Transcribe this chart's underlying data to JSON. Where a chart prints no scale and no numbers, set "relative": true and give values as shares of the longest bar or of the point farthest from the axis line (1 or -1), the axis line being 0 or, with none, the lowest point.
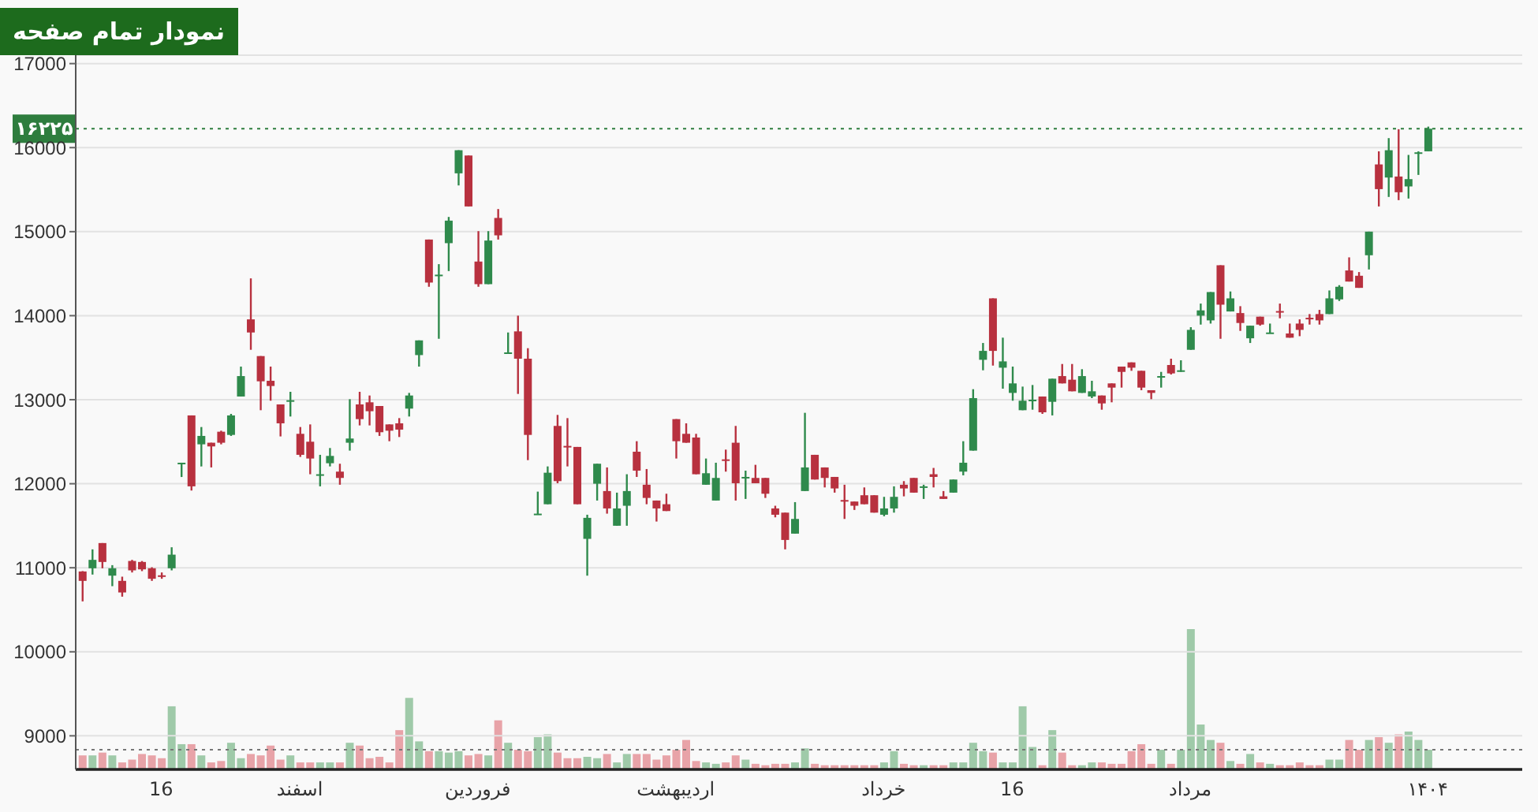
{
  "chart_data": [
    {
      "type": "candlestick",
      "annotations": [
        "نمودار تمام صفحه"
      ],
      "categories": [
        null,
        null,
        null,
        null,
        null,
        null,
        null,
        null,
        "16",
        null,
        null,
        null,
        null,
        null,
        null,
        null,
        null,
        null,
        null,
        null,
        null,
        null,
        "اسفند",
        null,
        null,
        null,
        null,
        null,
        null,
        null,
        null,
        null,
        null,
        null,
        null,
        null,
        null,
        null,
        null,
        null,
        "فروردین",
        null,
        null,
        null,
        null,
        null,
        null,
        null,
        null,
        null,
        null,
        null,
        null,
        null,
        null,
        null,
        null,
        null,
        null,
        null,
        "اردیبهشت",
        null,
        null,
        null,
        null,
        null,
        null,
        null,
        null,
        null,
        null,
        null,
        null,
        null,
        null,
        null,
        null,
        null,
        null,
        null,
        null,
        "خرداد",
        null,
        null,
        null,
        null,
        null,
        null,
        null,
        null,
        null,
        null,
        null,
        null,
        "16",
        null,
        null,
        null,
        null,
        null,
        null,
        null,
        null,
        null,
        null,
        null,
        null,
        null,
        null,
        null,
        null,
        null,
        "مرداد",
        null,
        null,
        null,
        null,
        null,
        null,
        null,
        null,
        null,
        null,
        null,
        null,
        null,
        null,
        null,
        null,
        null,
        null,
        null,
        null,
        null,
        null,
        null,
        "۱۴۰۴"
      ],
      "ohlc": [
        [
          10956,
          10960,
          10600,
          10844
        ],
        [
          10994,
          11219,
          10919,
          11094
        ],
        [
          11294,
          11294,
          10994,
          11069
        ],
        [
          10906,
          11031,
          10781,
          10994
        ],
        [
          10844,
          10894,
          10656,
          10706
        ],
        [
          11081,
          11094,
          10944,
          10969
        ],
        [
          11069,
          11080,
          10960,
          10981
        ],
        [
          10994,
          11006,
          10844,
          10869
        ],
        [
          10910,
          10944,
          10869,
          10906
        ],
        [
          10994,
          11244,
          10969,
          11156
        ],
        [
          12240,
          12250,
          12080,
          12250
        ],
        [
          12813,
          12813,
          11919,
          11969
        ],
        [
          12469,
          12675,
          12206,
          12569
        ],
        [
          12488,
          12488,
          12194,
          12444
        ],
        [
          12619,
          12631,
          12469,
          12488
        ],
        [
          12581,
          12831,
          12569,
          12813
        ],
        [
          13038,
          13394,
          13038,
          13281
        ],
        [
          13956,
          14444,
          13594,
          13800
        ],
        [
          13519,
          13519,
          12875,
          13219
        ],
        [
          13225,
          13394,
          12988,
          13163
        ],
        [
          12944,
          12944,
          12563,
          12719
        ],
        [
          12985,
          13094,
          12800,
          12994
        ],
        [
          12594,
          12675,
          12319,
          12344
        ],
        [
          12500,
          12706,
          12113,
          12300
        ],
        [
          12105,
          12344,
          11969,
          12113
        ],
        [
          12244,
          12425,
          12206,
          12331
        ],
        [
          12144,
          12238,
          11988,
          12069
        ],
        [
          12488,
          13006,
          12394,
          12538
        ],
        [
          12944,
          13094,
          12694,
          12769
        ],
        [
          12969,
          13050,
          12694,
          12863
        ],
        [
          12925,
          12925,
          12569,
          12613
        ],
        [
          12706,
          12706,
          12506,
          12631
        ],
        [
          12719,
          12781,
          12556,
          12644
        ],
        [
          12894,
          13081,
          12800,
          13050
        ],
        [
          13531,
          13706,
          13394,
          13706
        ],
        [
          14906,
          14906,
          14344,
          14394
        ],
        [
          14475,
          14613,
          13725,
          14488
        ],
        [
          14863,
          15175,
          14531,
          15131
        ],
        [
          15694,
          15969,
          15550,
          15969
        ],
        [
          15906,
          15906,
          15300,
          15300
        ],
        [
          14644,
          15006,
          14344,
          14375
        ],
        [
          14375,
          15006,
          14375,
          14894
        ],
        [
          15163,
          15269,
          14906,
          14956
        ],
        [
          13560,
          13800,
          13560,
          13563
        ],
        [
          13813,
          14000,
          13069,
          13488
        ],
        [
          13488,
          13613,
          12281,
          12581
        ],
        [
          11640,
          11906,
          11640,
          11644
        ],
        [
          11756,
          12206,
          11756,
          12131
        ],
        [
          12688,
          12819,
          12006,
          12031
        ],
        [
          12450,
          12781,
          12206,
          12444
        ],
        [
          12438,
          12438,
          11756,
          11756
        ],
        [
          11344,
          11631,
          10906,
          11594
        ],
        [
          12000,
          12238,
          11800,
          12238
        ],
        [
          11913,
          12194,
          11644,
          11706
        ],
        [
          11500,
          11894,
          11500,
          11706
        ],
        [
          11738,
          12113,
          11500,
          11913
        ],
        [
          12381,
          12506,
          12081,
          12156
        ],
        [
          11988,
          12175,
          11756,
          11831
        ],
        [
          11800,
          11800,
          11550,
          11706
        ],
        [
          11756,
          11881,
          11675,
          11675
        ],
        [
          12769,
          12769,
          12300,
          12506
        ],
        [
          12594,
          12719,
          12488,
          12488
        ],
        [
          12550,
          12594,
          12113,
          12113
        ],
        [
          11988,
          12300,
          11988,
          12125
        ],
        [
          11800,
          12250,
          11800,
          12069
        ],
        [
          12290,
          12406,
          12144,
          12281
        ],
        [
          12488,
          12688,
          11800,
          12006
        ],
        [
          12075,
          12156,
          11819,
          12081
        ],
        [
          12069,
          12225,
          12006,
          12006
        ],
        [
          12069,
          12069,
          11831,
          11881
        ],
        [
          11706,
          11738,
          11600,
          11631
        ],
        [
          11656,
          11656,
          11219,
          11331
        ],
        [
          11406,
          11781,
          11406,
          11581
        ],
        [
          11913,
          12844,
          11913,
          12194
        ],
        [
          12344,
          12344,
          12050,
          12050
        ],
        [
          12194,
          12194,
          11956,
          12069
        ],
        [
          12081,
          12081,
          11894,
          11944
        ],
        [
          11806,
          11988,
          11581,
          11800
        ],
        [
          11788,
          11788,
          11688,
          11738
        ],
        [
          11863,
          11956,
          11756,
          11756
        ],
        [
          11863,
          11863,
          11656,
          11656
        ],
        [
          11631,
          11844,
          11613,
          11706
        ],
        [
          11706,
          11969,
          11656,
          11844
        ],
        [
          11988,
          12031,
          11850,
          11944
        ],
        [
          12069,
          12069,
          11894,
          11894
        ],
        [
          11963,
          11988,
          11819,
          11969
        ],
        [
          12113,
          12188,
          11956,
          12081
        ],
        [
          11850,
          11913,
          11819,
          11819
        ],
        [
          11894,
          12050,
          11894,
          12050
        ],
        [
          12144,
          12506,
          12100,
          12250
        ],
        [
          12394,
          13125,
          12394,
          13019
        ],
        [
          13475,
          13675,
          13350,
          13581
        ],
        [
          14206,
          14206,
          13406,
          13581
        ],
        [
          13381,
          13738,
          13131,
          13456
        ],
        [
          13081,
          13394,
          12988,
          13194
        ],
        [
          12875,
          13156,
          12875,
          12988
        ],
        [
          12995,
          13175,
          12881,
          13000
        ],
        [
          13038,
          13038,
          12831,
          12850
        ],
        [
          12975,
          13250,
          12813,
          13250
        ],
        [
          13281,
          13425,
          13194,
          13194
        ],
        [
          13238,
          13425,
          13100,
          13100
        ],
        [
          13081,
          13363,
          13081,
          13281
        ],
        [
          13038,
          13225,
          13019,
          13100
        ],
        [
          13050,
          13050,
          12881,
          12956
        ],
        [
          13194,
          13194,
          12969,
          13144
        ],
        [
          13394,
          13394,
          13144,
          13331
        ],
        [
          13444,
          13444,
          13344,
          13381
        ],
        [
          13344,
          13344,
          13113,
          13144
        ],
        [
          13113,
          13113,
          13006,
          13081
        ],
        [
          13275,
          13331,
          13144,
          13281
        ],
        [
          13413,
          13488,
          13300,
          13313
        ],
        [
          13345,
          13469,
          13331,
          13350
        ],
        [
          13594,
          13863,
          13594,
          13831
        ],
        [
          14000,
          14144,
          13894,
          14063
        ],
        [
          13944,
          14281,
          13906,
          14281
        ],
        [
          14600,
          14600,
          13725,
          14131
        ],
        [
          14050,
          14288,
          14050,
          14206
        ],
        [
          14031,
          14113,
          13819,
          13913
        ],
        [
          13731,
          13881,
          13675,
          13881
        ],
        [
          13988,
          13988,
          13881,
          13894
        ],
        [
          13795,
          13906,
          13788,
          13800
        ],
        [
          14055,
          14144,
          13969,
          14050
        ],
        [
          13788,
          13906,
          13738,
          13738
        ],
        [
          13906,
          13956,
          13756,
          13831
        ],
        [
          13975,
          14019,
          13894,
          13969
        ],
        [
          14019,
          14069,
          13894,
          13944
        ],
        [
          14019,
          14300,
          14019,
          14206
        ],
        [
          14194,
          14363,
          14175,
          14344
        ],
        [
          14538,
          14694,
          14406,
          14406
        ],
        [
          14475,
          14519,
          14331,
          14331
        ],
        [
          14719,
          15000,
          14550,
          15000
        ],
        [
          15800,
          15956,
          15300,
          15506
        ],
        [
          15644,
          16113,
          15413,
          15969
        ],
        [
          15656,
          16219,
          15375,
          15469
        ],
        [
          15538,
          15913,
          15394,
          15625
        ],
        [
          15940,
          15956,
          15675,
          15944
        ],
        [
          15956,
          16250,
          15956,
          16225
        ]
      ],
      "colors": [
        "#b8313f",
        "#2f8a4c",
        "#b8313f",
        "#2f8a4c",
        "#b8313f",
        "#b8313f",
        "#b8313f",
        "#b8313f",
        "#b8313f",
        "#2f8a4c",
        "#2f8a4c",
        "#b8313f",
        "#2f8a4c",
        "#b8313f",
        "#b8313f",
        "#2f8a4c",
        "#2f8a4c",
        "#b8313f",
        "#b8313f",
        "#b8313f",
        "#b8313f",
        "#2f8a4c",
        "#b8313f",
        "#b8313f",
        "#2f8a4c",
        "#2f8a4c",
        "#b8313f",
        "#2f8a4c",
        "#b8313f",
        "#b8313f",
        "#b8313f",
        "#b8313f",
        "#b8313f",
        "#2f8a4c",
        "#2f8a4c",
        "#b8313f",
        "#2f8a4c",
        "#2f8a4c",
        "#2f8a4c",
        "#b8313f",
        "#b8313f",
        "#2f8a4c",
        "#b8313f",
        "#2f8a4c",
        "#b8313f",
        "#b8313f",
        "#2f8a4c",
        "#2f8a4c",
        "#b8313f",
        "#b8313f",
        "#b8313f",
        "#2f8a4c",
        "#2f8a4c",
        "#b8313f",
        "#2f8a4c",
        "#2f8a4c",
        "#b8313f",
        "#b8313f",
        "#b8313f",
        "#b8313f",
        "#b8313f",
        "#b8313f",
        "#b8313f",
        "#2f8a4c",
        "#2f8a4c",
        "#b8313f",
        "#b8313f",
        "#2f8a4c",
        "#b8313f",
        "#b8313f",
        "#b8313f",
        "#b8313f",
        "#2f8a4c",
        "#2f8a4c",
        "#b8313f",
        "#b8313f",
        "#b8313f",
        "#b8313f",
        "#b8313f",
        "#b8313f",
        "#b8313f",
        "#2f8a4c",
        "#2f8a4c",
        "#b8313f",
        "#b8313f",
        "#2f8a4c",
        "#b8313f",
        "#b8313f",
        "#2f8a4c",
        "#2f8a4c",
        "#2f8a4c",
        "#2f8a4c",
        "#b8313f",
        "#2f8a4c",
        "#2f8a4c",
        "#2f8a4c",
        "#2f8a4c",
        "#b8313f",
        "#2f8a4c",
        "#b8313f",
        "#b8313f",
        "#2f8a4c",
        "#2f8a4c",
        "#b8313f",
        "#b8313f",
        "#b8313f",
        "#b8313f",
        "#b8313f",
        "#b8313f",
        "#2f8a4c",
        "#b8313f",
        "#2f8a4c",
        "#2f8a4c",
        "#2f8a4c",
        "#2f8a4c",
        "#b8313f",
        "#2f8a4c",
        "#b8313f",
        "#2f8a4c",
        "#b8313f",
        "#2f8a4c",
        "#b8313f",
        "#b8313f",
        "#b8313f",
        "#b8313f",
        "#b8313f",
        "#2f8a4c",
        "#2f8a4c",
        "#b8313f",
        "#b8313f",
        "#2f8a4c",
        "#b8313f",
        "#2f8a4c",
        "#b8313f",
        "#2f8a4c",
        "#2f8a4c",
        "#2f8a4c"
      ],
      "ylim": [
        8600,
        17100
      ],
      "yticks": [
        9000,
        10000,
        11000,
        12000,
        13000,
        14000,
        15000,
        16000,
        17000
      ],
      "grid": "y",
      "ref_lines": [
        {
          "axis": "y",
          "value": 16225,
          "label": "۱۶۲۲۵",
          "color": "#2e7d3e",
          "line_style": "dotted"
        }
      ]
    },
    {
      "type": "bar",
      "relative": true,
      "categories": [
        null,
        null,
        null,
        null,
        null,
        null,
        null,
        null,
        null,
        null,
        null,
        null,
        null,
        null,
        null,
        null,
        null,
        null,
        null,
        null,
        null,
        null,
        null,
        null,
        null,
        null,
        null,
        null,
        null,
        null,
        null,
        null,
        null,
        null,
        null,
        null,
        null,
        null,
        null,
        null,
        null,
        null,
        null,
        null,
        null,
        null,
        null,
        null,
        null,
        null,
        null,
        null,
        null,
        null,
        null,
        null,
        null,
        null,
        null,
        null,
        null,
        null,
        null,
        null,
        null,
        null,
        null,
        null,
        null,
        null,
        null,
        null,
        null,
        null,
        null,
        null,
        null,
        null,
        null,
        null,
        null,
        null,
        null,
        null,
        null,
        null,
        null,
        null,
        null,
        null,
        null,
        null,
        null,
        null,
        null,
        null,
        null,
        null,
        null,
        null,
        null,
        null,
        null,
        null,
        null,
        null,
        null,
        null,
        null,
        null,
        null,
        null,
        null,
        null,
        null,
        null,
        null,
        null,
        null,
        null,
        null,
        null,
        null,
        null,
        null,
        null,
        null,
        null,
        null,
        null,
        null,
        null,
        null,
        null,
        null,
        null,
        null
      ],
      "values": [
        0.1,
        0.1,
        0.12,
        0.1,
        0.05,
        0.07,
        0.11,
        0.1,
        0.08,
        0.45,
        0.18,
        0.18,
        0.1,
        0.05,
        0.06,
        0.19,
        0.08,
        0.11,
        0.1,
        0.17,
        0.07,
        0.1,
        0.05,
        0.05,
        0.05,
        0.05,
        0.05,
        0.19,
        0.17,
        0.08,
        0.09,
        0.05,
        0.28,
        0.51,
        0.2,
        0.13,
        0.13,
        0.12,
        0.13,
        0.1,
        0.11,
        0.1,
        0.35,
        0.19,
        0.14,
        0.13,
        0.23,
        0.25,
        0.12,
        0.08,
        0.08,
        0.09,
        0.08,
        0.11,
        0.05,
        0.11,
        0.11,
        0.11,
        0.07,
        0.1,
        0.14,
        0.21,
        0.06,
        0.05,
        0.04,
        0.05,
        0.1,
        0.07,
        0.04,
        0.03,
        0.04,
        0.04,
        0.05,
        0.15,
        0.04,
        0.03,
        0.03,
        0.03,
        0.03,
        0.03,
        0.03,
        0.05,
        0.13,
        0.04,
        0.03,
        0.03,
        0.03,
        0.03,
        0.05,
        0.05,
        0.19,
        0.13,
        0.12,
        0.05,
        0.05,
        0.45,
        0.16,
        0.03,
        0.28,
        0.12,
        0.03,
        0.03,
        0.05,
        0.05,
        0.04,
        0.04,
        0.13,
        0.18,
        0.04,
        0.14,
        0.04,
        0.14,
        1,
        0.32,
        0.21,
        0.19,
        0.06,
        0.04,
        0.11,
        0.05,
        0.04,
        0.03,
        0.03,
        0.05,
        0.03,
        0.03,
        0.07,
        0.07,
        0.21,
        0.14,
        0.21,
        0.23,
        0.19,
        0.25,
        0.27,
        0.21,
        0.14
      ],
      "colors": [
        "#e8a3a8",
        "#9fcaa9",
        "#e8a3a8",
        "#9fcaa9",
        "#e8a3a8",
        "#e8a3a8",
        "#e8a3a8",
        "#e8a3a8",
        "#e8a3a8",
        "#9fcaa9",
        "#9fcaa9",
        "#e8a3a8",
        "#9fcaa9",
        "#e8a3a8",
        "#e8a3a8",
        "#9fcaa9",
        "#9fcaa9",
        "#e8a3a8",
        "#e8a3a8",
        "#e8a3a8",
        "#e8a3a8",
        "#9fcaa9",
        "#e8a3a8",
        "#e8a3a8",
        "#9fcaa9",
        "#9fcaa9",
        "#e8a3a8",
        "#9fcaa9",
        "#e8a3a8",
        "#e8a3a8",
        "#e8a3a8",
        "#e8a3a8",
        "#e8a3a8",
        "#9fcaa9",
        "#9fcaa9",
        "#e8a3a8",
        "#9fcaa9",
        "#9fcaa9",
        "#9fcaa9",
        "#e8a3a8",
        "#e8a3a8",
        "#9fcaa9",
        "#e8a3a8",
        "#9fcaa9",
        "#e8a3a8",
        "#e8a3a8",
        "#9fcaa9",
        "#9fcaa9",
        "#e8a3a8",
        "#e8a3a8",
        "#e8a3a8",
        "#9fcaa9",
        "#9fcaa9",
        "#e8a3a8",
        "#9fcaa9",
        "#9fcaa9",
        "#e8a3a8",
        "#e8a3a8",
        "#e8a3a8",
        "#e8a3a8",
        "#e8a3a8",
        "#e8a3a8",
        "#e8a3a8",
        "#9fcaa9",
        "#9fcaa9",
        "#e8a3a8",
        "#e8a3a8",
        "#9fcaa9",
        "#e8a3a8",
        "#e8a3a8",
        "#e8a3a8",
        "#e8a3a8",
        "#9fcaa9",
        "#9fcaa9",
        "#e8a3a8",
        "#e8a3a8",
        "#e8a3a8",
        "#e8a3a8",
        "#e8a3a8",
        "#e8a3a8",
        "#e8a3a8",
        "#9fcaa9",
        "#9fcaa9",
        "#e8a3a8",
        "#e8a3a8",
        "#9fcaa9",
        "#e8a3a8",
        "#e8a3a8",
        "#9fcaa9",
        "#9fcaa9",
        "#9fcaa9",
        "#9fcaa9",
        "#e8a3a8",
        "#9fcaa9",
        "#9fcaa9",
        "#9fcaa9",
        "#9fcaa9",
        "#e8a3a8",
        "#9fcaa9",
        "#e8a3a8",
        "#e8a3a8",
        "#9fcaa9",
        "#9fcaa9",
        "#e8a3a8",
        "#e8a3a8",
        "#e8a3a8",
        "#e8a3a8",
        "#e8a3a8",
        "#e8a3a8",
        "#9fcaa9",
        "#e8a3a8",
        "#9fcaa9",
        "#9fcaa9",
        "#9fcaa9",
        "#9fcaa9",
        "#e8a3a8",
        "#9fcaa9",
        "#e8a3a8",
        "#9fcaa9",
        "#e8a3a8",
        "#9fcaa9",
        "#e8a3a8",
        "#e8a3a8",
        "#e8a3a8",
        "#e8a3a8",
        "#e8a3a8",
        "#9fcaa9",
        "#9fcaa9",
        "#e8a3a8",
        "#e8a3a8",
        "#9fcaa9",
        "#e8a3a8",
        "#9fcaa9",
        "#e8a3a8",
        "#9fcaa9",
        "#9fcaa9",
        "#9fcaa9"
      ],
      "ref_lines": [
        {
          "axis": "y",
          "value": 0.14,
          "color": "#777777",
          "line_style": "dotted"
        }
      ]
    }
  ]
}
